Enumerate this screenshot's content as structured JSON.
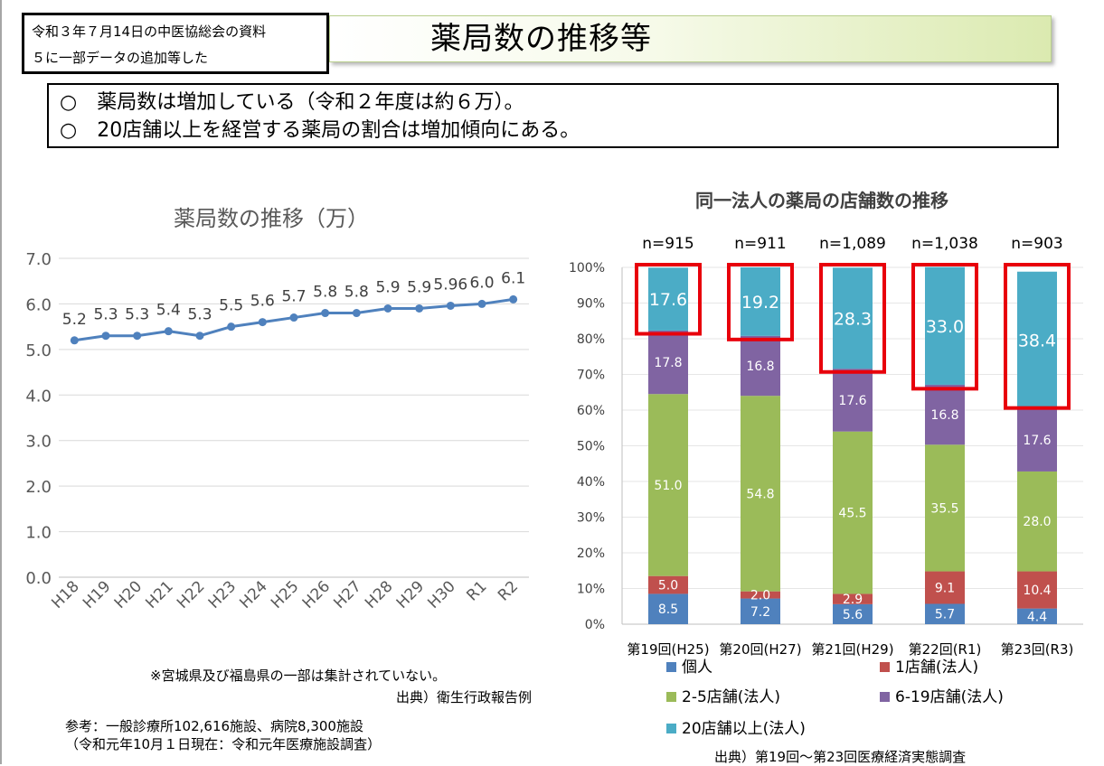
{
  "note": {
    "line1": "令和３年７月14日の中医協総会の資料",
    "line2": "５に一部データの追加等した"
  },
  "title": "薬局数の推移等",
  "bullets": [
    "○　薬局数は増加している（令和２年度は約６万）。",
    "○　20店舗以上を経営する薬局の割合は増加傾向にある。"
  ],
  "colors": {
    "line": "#4f81bd",
    "individual": "#4f81bd",
    "one_store": "#c0504d",
    "two_five": "#9bbb59",
    "six_nineteen": "#8064a2",
    "twenty_plus": "#4bacc6",
    "highlight": "#e8000b"
  },
  "footnotes": {
    "left_note": "※宮城県及び福島県の一部は集計されていない。",
    "left_source": "出典）衛生行政報告例",
    "reference1": "参考：一般診療所102,616施設、病院8,300施設",
    "reference2": "（令和元年10月１日現在：令和元年医療施設調査）",
    "right_source": "出典）第19回～第23回医療経済実態調査"
  },
  "chart_data": [
    {
      "type": "line",
      "title": "薬局数の推移（万）",
      "x": [
        "H18",
        "H19",
        "H20",
        "H21",
        "H22",
        "H23",
        "H24",
        "H25",
        "H26",
        "H27",
        "H28",
        "H29",
        "H30",
        "R1",
        "R2"
      ],
      "values": [
        5.2,
        5.3,
        5.3,
        5.4,
        5.3,
        5.5,
        5.6,
        5.7,
        5.8,
        5.8,
        5.9,
        5.9,
        5.96,
        6.0,
        6.1
      ],
      "data_labels": [
        "5.2",
        "5.3",
        "5.3",
        "5.4",
        "5.3",
        "5.5",
        "5.6",
        "5.7",
        "5.8",
        "5.8",
        "5.9",
        "5.9",
        "5.96",
        "6.0",
        "6.1"
      ],
      "yticks": [
        "0.0",
        "1.0",
        "2.0",
        "3.0",
        "4.0",
        "5.0",
        "6.0",
        "7.0"
      ],
      "ylim": [
        0,
        7
      ],
      "grid": true
    },
    {
      "type": "bar",
      "stacked": true,
      "title": "同一法人の薬局の店舗数の推移",
      "categories": [
        "第19回(H25)",
        "第20回(H27)",
        "第21回(H29)",
        "第22回(R1)",
        "第23回(R3)"
      ],
      "n_labels": [
        "n=915",
        "n=911",
        "n=1,089",
        "n=1,038",
        "n=903"
      ],
      "yticks": [
        "0%",
        "10%",
        "20%",
        "30%",
        "40%",
        "50%",
        "60%",
        "70%",
        "80%",
        "90%",
        "100%"
      ],
      "ylim": [
        0,
        100
      ],
      "series": [
        {
          "name": "個人",
          "values": [
            8.5,
            7.2,
            5.6,
            5.7,
            4.4
          ]
        },
        {
          "name": "1店舗(法人)",
          "values": [
            5.0,
            2.0,
            2.9,
            9.1,
            10.4
          ]
        },
        {
          "name": "2-5店舗(法人)",
          "values": [
            51.0,
            54.8,
            45.5,
            35.5,
            28.0
          ]
        },
        {
          "name": "6-19店舗(法人)",
          "values": [
            17.8,
            16.8,
            17.6,
            16.8,
            17.6
          ]
        },
        {
          "name": "20店舗以上(法人)",
          "values": [
            17.6,
            19.2,
            28.3,
            33.0,
            38.4
          ]
        }
      ],
      "legend_position": "bottom"
    }
  ]
}
